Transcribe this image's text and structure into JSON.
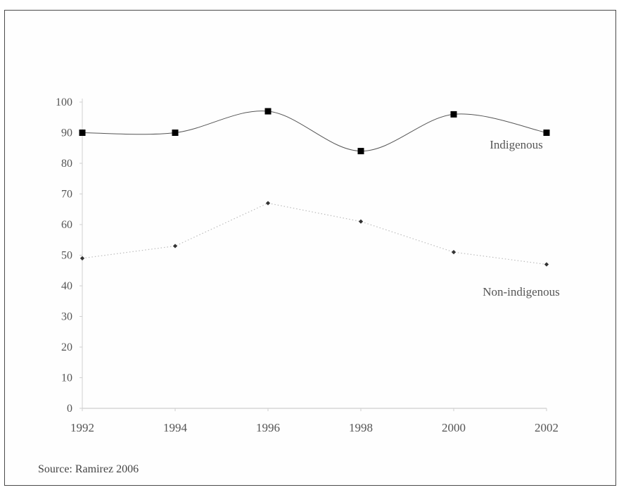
{
  "chart_data": {
    "type": "line",
    "title": "",
    "xlabel": "",
    "ylabel": "",
    "x": [
      1992,
      1994,
      1996,
      1998,
      2000,
      2002
    ],
    "x_tick_labels": [
      "1992",
      "1994",
      "1996",
      "1998",
      "2000",
      "2002"
    ],
    "y_tick_labels": [
      "0",
      "10",
      "20",
      "30",
      "40",
      "50",
      "60",
      "70",
      "80",
      "90",
      "100"
    ],
    "ylim": [
      0,
      100
    ],
    "grid": false,
    "legend": "none (series labeled directly on lines)",
    "series": [
      {
        "name": "Indigenous",
        "values": [
          90,
          90,
          97,
          84,
          96,
          90
        ],
        "style": "smooth solid line, square markers",
        "color": "#000000"
      },
      {
        "name": "Non-indigenous",
        "values": [
          49,
          53,
          67,
          61,
          51,
          47
        ],
        "style": "dotted line, small diamond markers",
        "color": "#333333"
      }
    ],
    "annotations": [
      "Indigenous",
      "Non-indigenous"
    ]
  },
  "source": "Source: Ramirez 2006"
}
